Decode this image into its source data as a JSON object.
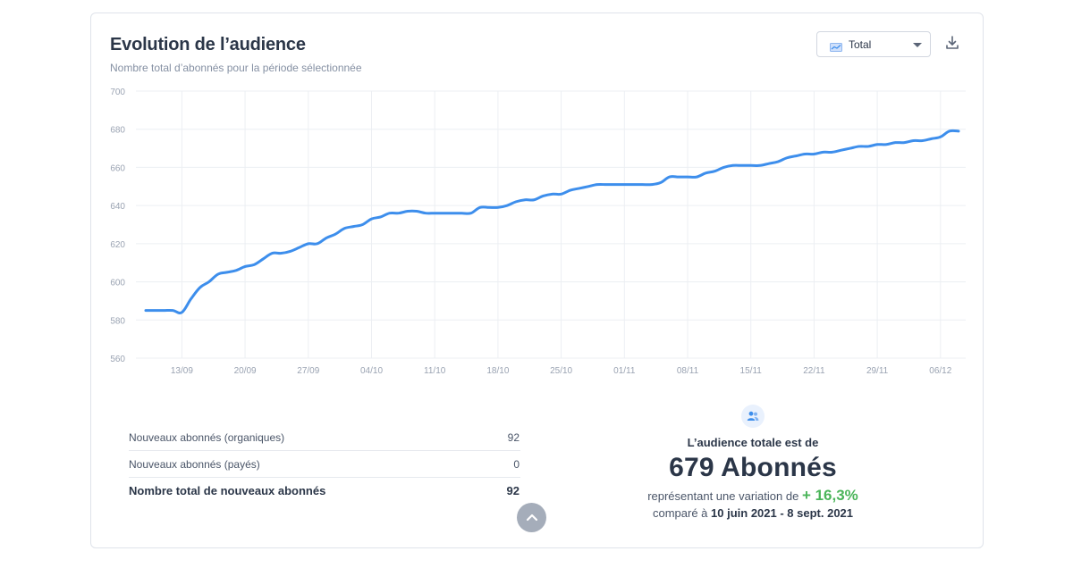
{
  "header": {
    "title": "Evolution de l’audience",
    "subtitle": "Nombre total d’abonnés pour la période sélectionnée",
    "select_value": "Total",
    "select_icon": "chart-icon",
    "download_icon": "download-icon"
  },
  "colors": {
    "line": "#3d8eec",
    "grid": "#eceff3",
    "axis_text": "#9aa3b2",
    "positive": "#4bb55a"
  },
  "chart_data": {
    "type": "line",
    "title": "Evolution de l’audience",
    "subtitle": "Nombre total d’abonnés pour la période sélectionnée",
    "xlabel": "",
    "ylabel": "",
    "ylim": [
      560,
      700
    ],
    "yticks": [
      560,
      580,
      600,
      620,
      640,
      660,
      680,
      700
    ],
    "xticks": [
      "13/09",
      "20/09",
      "27/09",
      "04/10",
      "11/10",
      "18/10",
      "25/10",
      "01/11",
      "08/11",
      "15/11",
      "22/11",
      "29/11",
      "06/12"
    ],
    "grid": true,
    "legend": "none",
    "series": [
      {
        "x": [
          "09/09",
          "10/09",
          "11/09",
          "12/09",
          "13/09",
          "14/09",
          "15/09",
          "16/09",
          "17/09",
          "18/09",
          "19/09",
          "20/09",
          "21/09",
          "22/09",
          "23/09",
          "24/09",
          "25/09",
          "26/09",
          "27/09",
          "28/09",
          "29/09",
          "30/09",
          "01/10",
          "02/10",
          "03/10",
          "04/10",
          "05/10",
          "06/10",
          "07/10",
          "08/10",
          "09/10",
          "10/10",
          "11/10",
          "12/10",
          "13/10",
          "14/10",
          "15/10",
          "16/10",
          "17/10",
          "18/10",
          "19/10",
          "20/10",
          "21/10",
          "22/10",
          "23/10",
          "24/10",
          "25/10",
          "26/10",
          "27/10",
          "28/10",
          "29/10",
          "30/10",
          "31/10",
          "01/11",
          "02/11",
          "03/11",
          "04/11",
          "05/11",
          "06/11",
          "07/11",
          "08/11",
          "09/11",
          "10/11",
          "11/11",
          "12/11",
          "13/11",
          "14/11",
          "15/11",
          "16/11",
          "17/11",
          "18/11",
          "19/11",
          "20/11",
          "21/11",
          "22/11",
          "23/11",
          "24/11",
          "25/11",
          "26/11",
          "27/11",
          "28/11",
          "29/11",
          "30/11",
          "01/12",
          "02/12",
          "03/12",
          "04/12",
          "05/12",
          "06/12",
          "07/12",
          "08/12"
        ],
        "values": [
          585,
          585,
          585,
          585,
          584,
          591,
          597,
          600,
          604,
          605,
          606,
          608,
          609,
          612,
          615,
          615,
          616,
          618,
          620,
          620,
          623,
          625,
          628,
          629,
          630,
          633,
          634,
          636,
          636,
          637,
          637,
          636,
          636,
          636,
          636,
          636,
          636,
          639,
          639,
          639,
          640,
          642,
          643,
          643,
          645,
          646,
          646,
          648,
          649,
          650,
          651,
          651,
          651,
          651,
          651,
          651,
          651,
          652,
          655,
          655,
          655,
          655,
          657,
          658,
          660,
          661,
          661,
          661,
          661,
          662,
          663,
          665,
          666,
          667,
          667,
          668,
          668,
          669,
          670,
          671,
          671,
          672,
          672,
          673,
          673,
          674,
          674,
          675,
          676,
          679,
          679
        ]
      }
    ]
  },
  "stats": {
    "rows": [
      {
        "label": "Nouveaux abonnés (organiques)",
        "value": "92"
      },
      {
        "label": "Nouveaux abonnés (payés)",
        "value": "0"
      },
      {
        "label": "Nombre total de nouveaux abonnés",
        "value": "92"
      }
    ]
  },
  "summary": {
    "icon": "people-icon",
    "label": "L’audience totale est de",
    "value": "679 Abonnés",
    "variation_prefix": "représentant une variation de",
    "variation_value": "+ 16,3%",
    "compare_prefix": "comparé à",
    "compare_range": "10 juin 2021 - 8 sept. 2021"
  }
}
